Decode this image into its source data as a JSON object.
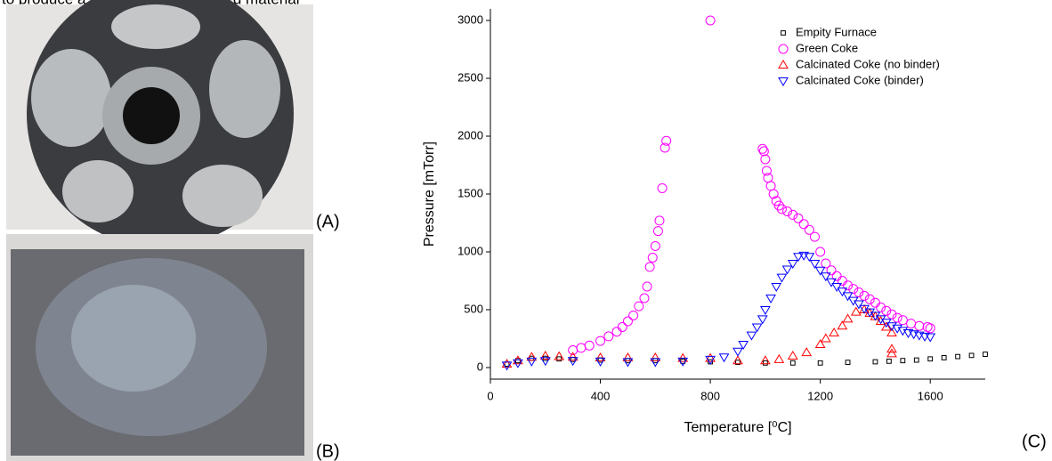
{
  "header_text": "to produce a homogeneously mixed material",
  "panels": {
    "a": "(A)",
    "b": "(B)",
    "c": "(C)"
  },
  "chart_data": {
    "type": "scatter",
    "xlabel": "Temperature [⁰C]",
    "ylabel": "Pressure [mTorr]",
    "xlim": [
      0,
      1800
    ],
    "ylim": [
      -100,
      3100
    ],
    "xticks": [
      0,
      400,
      800,
      1200,
      1600
    ],
    "yticks": [
      0,
      500,
      1000,
      1500,
      2000,
      2500,
      3000
    ],
    "legend": "upper right",
    "series": [
      {
        "name": "Empity Furnace",
        "color": "#000000",
        "marker": "square",
        "x": [
          60,
          100,
          150,
          200,
          250,
          300,
          400,
          500,
          600,
          700,
          800,
          900,
          1000,
          1100,
          1200,
          1300,
          1400,
          1450,
          1500,
          1550,
          1600,
          1650,
          1700,
          1750,
          1800
        ],
        "values": [
          30,
          60,
          80,
          80,
          75,
          70,
          65,
          60,
          60,
          55,
          50,
          45,
          40,
          40,
          40,
          45,
          50,
          55,
          60,
          65,
          75,
          85,
          95,
          105,
          115
        ]
      },
      {
        "name": "Green Coke",
        "color": "#ff00ff",
        "marker": "circle",
        "x": [
          300,
          330,
          360,
          400,
          430,
          460,
          480,
          500,
          520,
          540,
          560,
          570,
          580,
          590,
          600,
          610,
          615,
          625,
          635,
          640,
          800,
          990,
          995,
          1000,
          1005,
          1010,
          1020,
          1030,
          1040,
          1050,
          1060,
          1080,
          1100,
          1120,
          1140,
          1160,
          1180,
          1200,
          1220,
          1240,
          1260,
          1280,
          1300,
          1320,
          1340,
          1360,
          1380,
          1400,
          1420,
          1440,
          1460,
          1480,
          1500,
          1530,
          1560,
          1590,
          1600
        ],
        "values": [
          150,
          170,
          190,
          230,
          270,
          310,
          350,
          400,
          450,
          530,
          600,
          700,
          870,
          950,
          1050,
          1180,
          1270,
          1550,
          1900,
          1960,
          3000,
          1890,
          1870,
          1800,
          1700,
          1640,
          1570,
          1500,
          1440,
          1400,
          1370,
          1350,
          1320,
          1290,
          1240,
          1190,
          1130,
          1000,
          900,
          840,
          790,
          750,
          710,
          680,
          650,
          620,
          590,
          560,
          520,
          490,
          460,
          430,
          410,
          380,
          360,
          350,
          340
        ]
      },
      {
        "name": "Calcinated Coke (no binder)",
        "color": "#ff0000",
        "marker": "triangle-up",
        "x": [
          60,
          100,
          150,
          200,
          250,
          300,
          400,
          500,
          600,
          700,
          800,
          900,
          1000,
          1050,
          1100,
          1150,
          1200,
          1220,
          1250,
          1280,
          1300,
          1330,
          1360,
          1380,
          1400,
          1420,
          1440,
          1460,
          1460,
          1460
        ],
        "values": [
          30,
          60,
          90,
          100,
          95,
          90,
          85,
          85,
          85,
          80,
          80,
          60,
          60,
          70,
          100,
          130,
          200,
          250,
          300,
          360,
          420,
          480,
          500,
          470,
          440,
          400,
          350,
          300,
          160,
          120
        ]
      },
      {
        "name": "Calcinated Coke (binder)",
        "color": "#0000ff",
        "marker": "triangle-down",
        "x": [
          60,
          100,
          150,
          200,
          300,
          400,
          500,
          600,
          700,
          800,
          850,
          900,
          920,
          950,
          970,
          990,
          1000,
          1020,
          1040,
          1060,
          1080,
          1100,
          1120,
          1140,
          1160,
          1180,
          1200,
          1220,
          1240,
          1260,
          1280,
          1300,
          1320,
          1340,
          1360,
          1380,
          1400,
          1420,
          1440,
          1460,
          1480,
          1500,
          1520,
          1540,
          1560,
          1580,
          1600
        ],
        "values": [
          20,
          40,
          55,
          60,
          60,
          55,
          50,
          50,
          55,
          70,
          90,
          140,
          200,
          280,
          350,
          420,
          500,
          600,
          700,
          780,
          850,
          900,
          960,
          970,
          960,
          900,
          840,
          790,
          740,
          700,
          660,
          620,
          580,
          550,
          510,
          480,
          450,
          420,
          390,
          360,
          340,
          320,
          300,
          290,
          280,
          270,
          265
        ]
      }
    ]
  }
}
